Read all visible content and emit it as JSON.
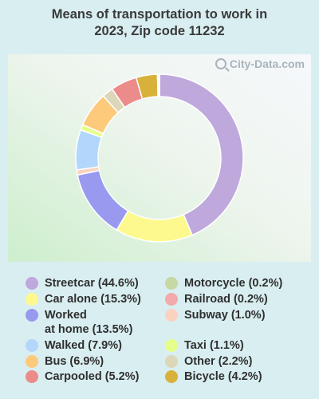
{
  "chart_data": {
    "type": "pie",
    "title": "Means of transportation to work in 2023, Zip code 11232",
    "title_lines": [
      "Means of transportation to work in",
      "2023, Zip code 11232"
    ],
    "watermark": "City-Data.com",
    "donut": true,
    "slices": [
      {
        "label": "Streetcar (44.6%)",
        "legend_text": "Streetcar (44.6%)",
        "value": 44.6,
        "color": "#bfa8dc"
      },
      {
        "label": "Car alone (15.3%)",
        "legend_text": "Car alone (15.3%)",
        "value": 15.3,
        "color": "#fdf98e"
      },
      {
        "label": "Worked at home (13.5%)",
        "legend_text": "Worked\nat home (13.5%)",
        "value": 13.5,
        "color": "#9999f0"
      },
      {
        "label": "Subway (1.0%)",
        "legend_text": "Subway (1.0%)",
        "value": 1.0,
        "color": "#fad3c0"
      },
      {
        "label": "Walked (7.9%)",
        "legend_text": "Walked (7.9%)",
        "value": 7.9,
        "color": "#b2d6fc"
      },
      {
        "label": "Taxi (1.1%)",
        "legend_text": "Taxi (1.1%)",
        "value": 1.1,
        "color": "#e6ff8a"
      },
      {
        "label": "Bus (6.9%)",
        "legend_text": "Bus (6.9%)",
        "value": 6.9,
        "color": "#fdc97b"
      },
      {
        "label": "Other (2.2%)",
        "legend_text": "Other (2.2%)",
        "value": 2.2,
        "color": "#dcd7b8"
      },
      {
        "label": "Carpooled (5.2%)",
        "legend_text": "Carpooled (5.2%)",
        "value": 5.2,
        "color": "#eb8c8a"
      },
      {
        "label": "Bicycle (4.2%)",
        "legend_text": "Bicycle (4.2%)",
        "value": 4.2,
        "color": "#d8b13a"
      },
      {
        "label": "Railroad (0.2%)",
        "legend_text": "Railroad (0.2%)",
        "value": 0.2,
        "color": "#f2aaaa"
      },
      {
        "label": "Motorcycle (0.2%)",
        "legend_text": "Motorcycle (0.2%)",
        "value": 0.2,
        "color": "#c6d8a4"
      }
    ],
    "legend_order": [
      "Streetcar (44.6%)",
      "Car alone (15.3%)",
      "Worked at home (13.5%)",
      "Walked (7.9%)",
      "Bus (6.9%)",
      "Carpooled (5.2%)",
      "Motorcycle (0.2%)",
      "Railroad (0.2%)",
      "Subway (1.0%)",
      "Taxi (1.1%)",
      "Other (2.2%)",
      "Bicycle (4.2%)"
    ]
  }
}
